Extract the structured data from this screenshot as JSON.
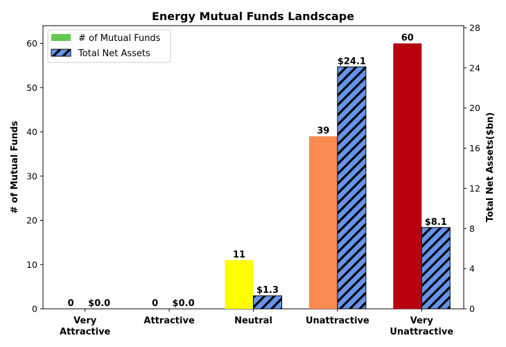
{
  "chart_data": {
    "type": "bar",
    "title": "Energy Mutual Funds Landscape",
    "categories": [
      [
        "Very",
        "Attractive"
      ],
      [
        "Attractive"
      ],
      [
        "Neutral"
      ],
      [
        "Unattractive"
      ],
      [
        "Very",
        "Unattractive"
      ]
    ],
    "y_left": {
      "label": "# of Mutual Funds",
      "lim": [
        0,
        64
      ],
      "ticks": [
        0,
        10,
        20,
        30,
        40,
        50,
        60
      ]
    },
    "y_right": {
      "label": "Total Net Assets($bn)",
      "lim": [
        0,
        28.2
      ],
      "ticks": [
        0,
        4,
        8,
        12,
        16,
        20,
        24,
        28
      ]
    },
    "series": [
      {
        "name": "# of Mutual Funds",
        "axis": "left",
        "values": [
          0,
          0,
          11,
          39,
          60
        ],
        "labels": [
          "0",
          "0",
          "11",
          "39",
          "60"
        ],
        "colors": [
          "#62c950",
          "#62c950",
          "#ffff00",
          "#f98a52",
          "#b80010"
        ],
        "legend_color": "#62c950"
      },
      {
        "name": "Total Net Assets",
        "axis": "right",
        "values": [
          0.0,
          0.0,
          1.3,
          24.1,
          8.1
        ],
        "labels": [
          "$0.0",
          "$0.0",
          "$1.3",
          "$24.1",
          "$8.1"
        ],
        "color": "#6495ed",
        "hatch": "///"
      }
    ],
    "legend_position": "top-left",
    "grid": false
  }
}
